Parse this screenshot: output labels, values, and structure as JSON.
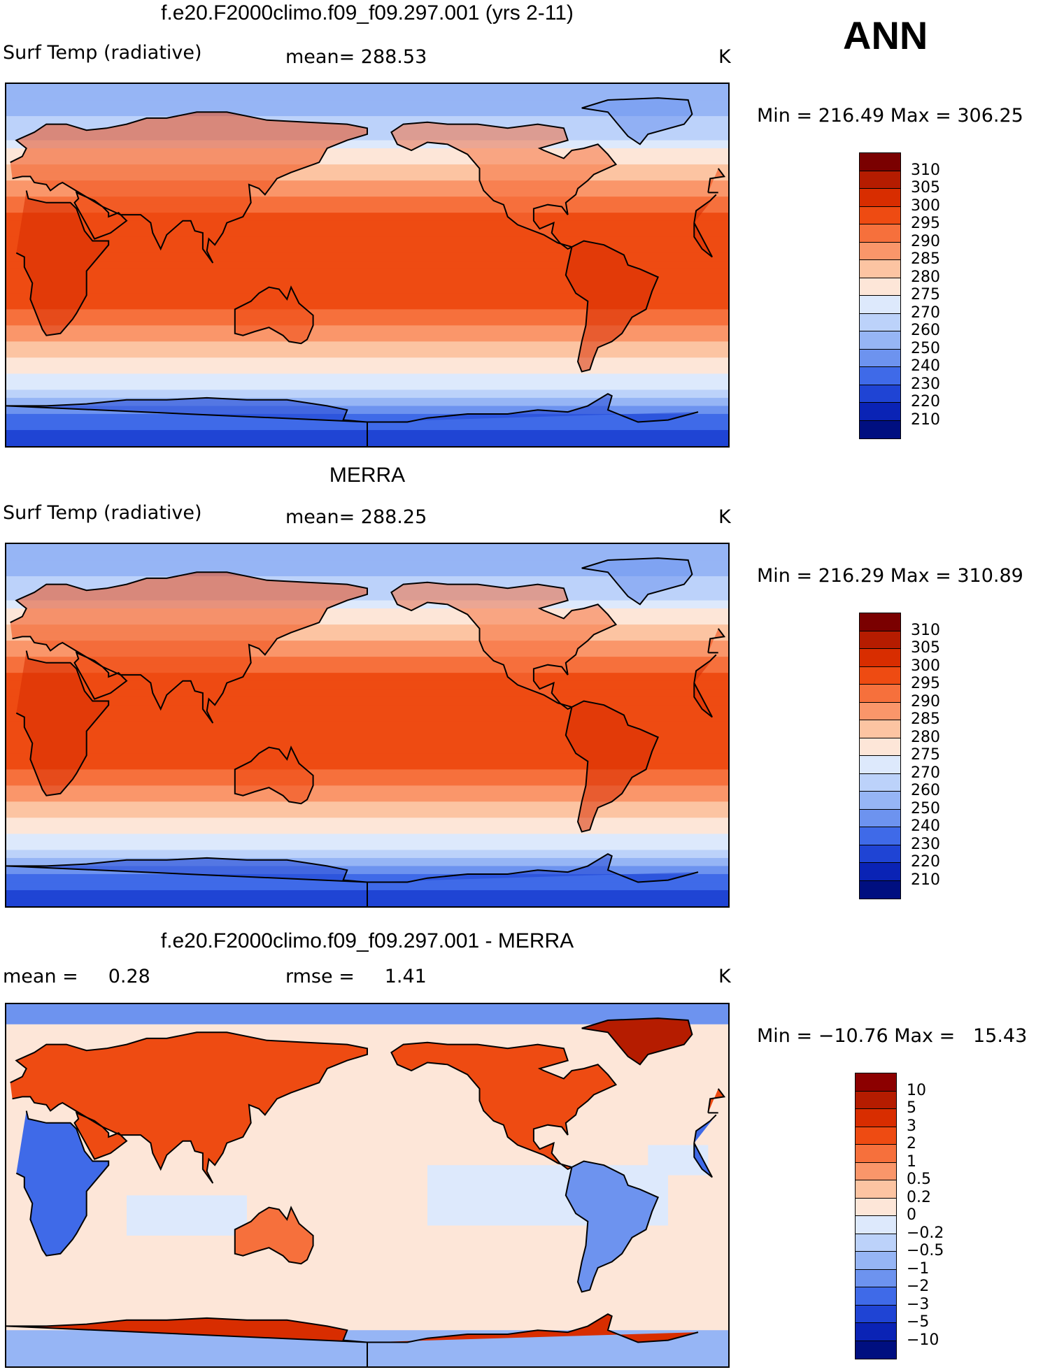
{
  "season": "ANN",
  "panels": [
    {
      "title": "f.e20.F2000climo.f09_f09.297.001 (yrs 2-11)",
      "left": "Surf Temp (radiative)",
      "middle": "mean= 288.53",
      "units": "K",
      "minmax": "Min = 216.49 Max = 306.25",
      "colorbar": {
        "labels": [
          "310",
          "305",
          "300",
          "295",
          "290",
          "285",
          "280",
          "275",
          "270",
          "260",
          "250",
          "240",
          "230",
          "220",
          "210"
        ],
        "colors": [
          "#7a0000",
          "#b51c00",
          "#d82d00",
          "#ee4b12",
          "#f6703c",
          "#fa966a",
          "#fcc4a2",
          "#fde6d8",
          "#dde9fc",
          "#bcd2fa",
          "#96b5f5",
          "#6d93ef",
          "#3f6ae8",
          "#1f44d4",
          "#0a23b5",
          "#000f80"
        ]
      }
    },
    {
      "title": "MERRA",
      "left": "Surf Temp (radiative)",
      "middle": "mean= 288.25",
      "units": "K",
      "minmax": "Min = 216.29 Max = 310.89",
      "colorbar": {
        "labels": [
          "310",
          "305",
          "300",
          "295",
          "290",
          "285",
          "280",
          "275",
          "270",
          "260",
          "250",
          "240",
          "230",
          "220",
          "210"
        ],
        "colors": [
          "#7a0000",
          "#b51c00",
          "#d82d00",
          "#ee4b12",
          "#f6703c",
          "#fa966a",
          "#fcc4a2",
          "#fde6d8",
          "#dde9fc",
          "#bcd2fa",
          "#96b5f5",
          "#6d93ef",
          "#3f6ae8",
          "#1f44d4",
          "#0a23b5",
          "#000f80"
        ]
      }
    },
    {
      "title": "f.e20.F2000climo.f09_f09.297.001 - MERRA",
      "left": "mean =     0.28",
      "middle": "rmse =     1.41",
      "units": "K",
      "minmax": "Min = −10.76 Max =   15.43",
      "colorbar": {
        "labels": [
          "10",
          "5",
          "3",
          "2",
          "1",
          "0.5",
          "0.2",
          "0",
          "−0.2",
          "−0.5",
          "−1",
          "−2",
          "−3",
          "−5",
          "−10"
        ],
        "colors": [
          "#8c0000",
          "#b51c00",
          "#d82d00",
          "#ee4b12",
          "#f6703c",
          "#fa966a",
          "#fcc4a2",
          "#fde6d8",
          "#dde9fc",
          "#bcd2fa",
          "#96b5f5",
          "#6d93ef",
          "#3f6ae8",
          "#1f44d4",
          "#0a23b5",
          "#000f80"
        ]
      }
    }
  ],
  "chart_data": [
    {
      "type": "heatmap",
      "title": "f.e20.F2000climo.f09_f09.297.001 (yrs 2-11)",
      "variable": "Surf Temp (radiative)",
      "units": "K",
      "mean": 288.53,
      "min": 216.49,
      "max": 306.25,
      "contour_levels": [
        210,
        220,
        230,
        240,
        250,
        260,
        270,
        275,
        280,
        285,
        290,
        295,
        300,
        305,
        310
      ],
      "zonal_profile": {
        "lat": [
          90,
          80,
          70,
          60,
          50,
          40,
          30,
          20,
          10,
          0,
          -10,
          -20,
          -30,
          -40,
          -50,
          -60,
          -70,
          -80,
          -90
        ],
        "value": [
          252,
          255,
          262,
          272,
          280,
          287,
          293,
          298,
          300,
          300,
          299,
          296,
          291,
          285,
          278,
          271,
          250,
          232,
          226
        ]
      }
    },
    {
      "type": "heatmap",
      "title": "MERRA",
      "variable": "Surf Temp (radiative)",
      "units": "K",
      "mean": 288.25,
      "min": 216.29,
      "max": 310.89,
      "contour_levels": [
        210,
        220,
        230,
        240,
        250,
        260,
        270,
        275,
        280,
        285,
        290,
        295,
        300,
        305,
        310
      ],
      "zonal_profile": {
        "lat": [
          90,
          80,
          70,
          60,
          50,
          40,
          30,
          20,
          10,
          0,
          -10,
          -20,
          -30,
          -40,
          -50,
          -60,
          -70,
          -80,
          -90
        ],
        "value": [
          252,
          255,
          262,
          272,
          280,
          287,
          293,
          298,
          300,
          300,
          299,
          296,
          291,
          285,
          278,
          271,
          250,
          232,
          226
        ]
      }
    },
    {
      "type": "heatmap",
      "title": "f.e20.F2000climo.f09_f09.297.001 - MERRA",
      "units": "K",
      "mean": 0.28,
      "rmse": 1.41,
      "min": -10.76,
      "max": 15.43,
      "contour_levels": [
        -10,
        -5,
        -3,
        -2,
        -1,
        -0.5,
        -0.2,
        0,
        0.2,
        0.5,
        1,
        2,
        3,
        5,
        10
      ]
    }
  ]
}
